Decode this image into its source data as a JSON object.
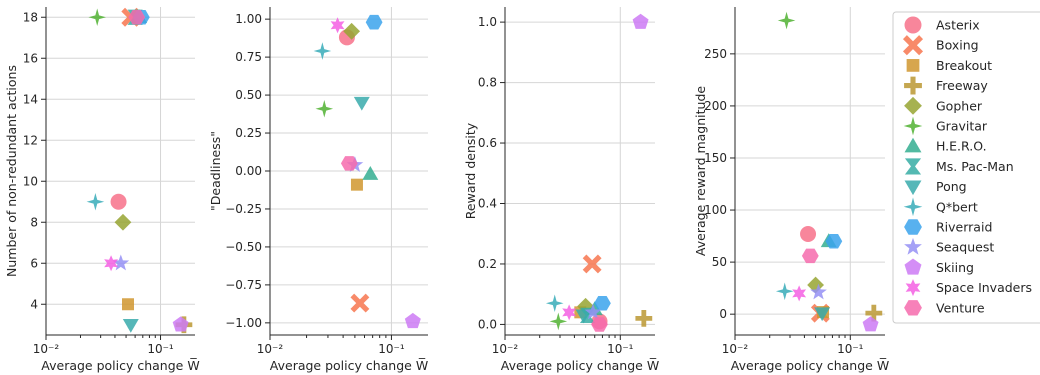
{
  "chart_data": [
    {
      "type": "scatter",
      "xlabel": "Average policy change W̅",
      "ylabel": "Number of non-redundant actions",
      "xscale": "log",
      "xlim": [
        0.01,
        0.2
      ],
      "ylim": [
        2.5,
        18.5
      ],
      "xticks": [
        0.01,
        0.1
      ],
      "xtick_labels": [
        "10⁻²",
        "10⁻¹"
      ],
      "yticks": [
        4,
        6,
        8,
        10,
        12,
        14,
        16,
        18
      ],
      "ytick_labels": [
        "4",
        "6",
        "8",
        "10",
        "12",
        "14",
        "16",
        "18"
      ],
      "grid": true,
      "points": [
        {
          "game": "Asterix",
          "x": 0.043,
          "y": 9
        },
        {
          "game": "Boxing",
          "x": 0.055,
          "y": 18
        },
        {
          "game": "Breakout",
          "x": 0.052,
          "y": 4
        },
        {
          "game": "Freeway",
          "x": 0.16,
          "y": 3
        },
        {
          "game": "Gopher",
          "x": 0.047,
          "y": 8
        },
        {
          "game": "Gravitar",
          "x": 0.028,
          "y": 18
        },
        {
          "game": "H.E.R.O.",
          "x": 0.065,
          "y": 18
        },
        {
          "game": "Ms. Pac-Man",
          "x": 0.06,
          "y": 18
        },
        {
          "game": "Pong",
          "x": 0.055,
          "y": 3
        },
        {
          "game": "Q*bert",
          "x": 0.027,
          "y": 9
        },
        {
          "game": "Riverraid",
          "x": 0.068,
          "y": 18
        },
        {
          "game": "Seaquest",
          "x": 0.045,
          "y": 6
        },
        {
          "game": "Skiing",
          "x": 0.15,
          "y": 3
        },
        {
          "game": "Space Invaders",
          "x": 0.037,
          "y": 6
        },
        {
          "game": "Venture",
          "x": 0.062,
          "y": 18
        }
      ]
    },
    {
      "type": "scatter",
      "xlabel": "Average policy change W̅",
      "ylabel": "\"Deadliness\"",
      "xscale": "log",
      "xlim": [
        0.01,
        0.2
      ],
      "ylim": [
        -1.08,
        1.08
      ],
      "xticks": [
        0.01,
        0.1
      ],
      "xtick_labels": [
        "10⁻²",
        "10⁻¹"
      ],
      "yticks": [
        -1.0,
        -0.75,
        -0.5,
        -0.25,
        0.0,
        0.25,
        0.5,
        0.75,
        1.0
      ],
      "ytick_labels": [
        "−1.00",
        "−0.75",
        "−0.50",
        "−0.25",
        "0.00",
        "0.25",
        "0.50",
        "0.75",
        "1.00"
      ],
      "grid": true,
      "points": [
        {
          "game": "Asterix",
          "x": 0.043,
          "y": 0.88
        },
        {
          "game": "Boxing",
          "x": 0.055,
          "y": -0.87
        },
        {
          "game": "Breakout",
          "x": 0.052,
          "y": -0.09
        },
        {
          "game": "Gopher",
          "x": 0.047,
          "y": 0.92
        },
        {
          "game": "Gravitar",
          "x": 0.028,
          "y": 0.41
        },
        {
          "game": "H.E.R.O.",
          "x": 0.067,
          "y": -0.02
        },
        {
          "game": "Pong",
          "x": 0.057,
          "y": 0.45
        },
        {
          "game": "Q*bert",
          "x": 0.027,
          "y": 0.79
        },
        {
          "game": "Riverraid",
          "x": 0.072,
          "y": 0.98
        },
        {
          "game": "Seaquest",
          "x": 0.05,
          "y": 0.04
        },
        {
          "game": "Skiing",
          "x": 0.15,
          "y": -0.99
        },
        {
          "game": "Space Invaders",
          "x": 0.036,
          "y": 0.96
        },
        {
          "game": "Venture",
          "x": 0.045,
          "y": 0.05
        }
      ]
    },
    {
      "type": "scatter",
      "xlabel": "Average policy change W̅",
      "ylabel": "Reward density",
      "xscale": "log",
      "xlim": [
        0.01,
        0.2
      ],
      "ylim": [
        -0.035,
        1.05
      ],
      "xticks": [
        0.01,
        0.1
      ],
      "xtick_labels": [
        "10⁻²",
        "10⁻¹"
      ],
      "yticks": [
        0.0,
        0.2,
        0.4,
        0.6,
        0.8,
        1.0
      ],
      "ytick_labels": [
        "0.0",
        "0.2",
        "0.4",
        "0.6",
        "0.8",
        "1.0"
      ],
      "grid": true,
      "points": [
        {
          "game": "Asterix",
          "x": 0.066,
          "y": 0.01
        },
        {
          "game": "Boxing",
          "x": 0.057,
          "y": 0.2
        },
        {
          "game": "Breakout",
          "x": 0.045,
          "y": 0.04
        },
        {
          "game": "Freeway",
          "x": 0.16,
          "y": 0.02
        },
        {
          "game": "Gopher",
          "x": 0.05,
          "y": 0.06
        },
        {
          "game": "Gravitar",
          "x": 0.029,
          "y": 0.01
        },
        {
          "game": "H.E.R.O.",
          "x": 0.06,
          "y": 0.05
        },
        {
          "game": "Ms. Pac-Man",
          "x": 0.052,
          "y": 0.03
        },
        {
          "game": "Pong",
          "x": 0.048,
          "y": 0.03
        },
        {
          "game": "Q*bert",
          "x": 0.027,
          "y": 0.07
        },
        {
          "game": "Riverraid",
          "x": 0.07,
          "y": 0.07
        },
        {
          "game": "Seaquest",
          "x": 0.058,
          "y": 0.04
        },
        {
          "game": "Skiing",
          "x": 0.15,
          "y": 1.0
        },
        {
          "game": "Space Invaders",
          "x": 0.036,
          "y": 0.04
        },
        {
          "game": "Venture",
          "x": 0.066,
          "y": 0.0
        }
      ]
    },
    {
      "type": "scatter",
      "xlabel": "Average policy change W̅",
      "ylabel": "Average reward magnitude",
      "xscale": "log",
      "xlim": [
        0.01,
        0.2
      ],
      "ylim": [
        -20,
        295
      ],
      "xticks": [
        0.01,
        0.1
      ],
      "xtick_labels": [
        "10⁻²",
        "10⁻¹"
      ],
      "yticks": [
        0,
        50,
        100,
        150,
        200,
        250
      ],
      "ytick_labels": [
        "0",
        "50",
        "100",
        "150",
        "200",
        "250"
      ],
      "grid": true,
      "points": [
        {
          "game": "Asterix",
          "x": 0.043,
          "y": 77
        },
        {
          "game": "Boxing",
          "x": 0.055,
          "y": 1
        },
        {
          "game": "Breakout",
          "x": 0.058,
          "y": 2
        },
        {
          "game": "Freeway",
          "x": 0.16,
          "y": 1
        },
        {
          "game": "Gopher",
          "x": 0.05,
          "y": 28
        },
        {
          "game": "Gravitar",
          "x": 0.028,
          "y": 282
        },
        {
          "game": "H.E.R.O.",
          "x": 0.065,
          "y": 70
        },
        {
          "game": "Pong",
          "x": 0.057,
          "y": 1
        },
        {
          "game": "Q*bert",
          "x": 0.027,
          "y": 22
        },
        {
          "game": "Riverraid",
          "x": 0.072,
          "y": 70
        },
        {
          "game": "Seaquest",
          "x": 0.053,
          "y": 21
        },
        {
          "game": "Skiing",
          "x": 0.15,
          "y": -10
        },
        {
          "game": "Space Invaders",
          "x": 0.036,
          "y": 20
        },
        {
          "game": "Venture",
          "x": 0.045,
          "y": 56
        }
      ]
    }
  ],
  "legend": {
    "placement": "right",
    "entries": [
      {
        "label": "Asterix",
        "color": "#f77189",
        "marker": "circle"
      },
      {
        "label": "Boxing",
        "color": "#f7754f",
        "marker": "x"
      },
      {
        "label": "Breakout",
        "color": "#d0962f",
        "marker": "square"
      },
      {
        "label": "Freeway",
        "color": "#bb9832",
        "marker": "plus"
      },
      {
        "label": "Gopher",
        "color": "#97a431",
        "marker": "diamond"
      },
      {
        "label": "Gravitar",
        "color": "#50b131",
        "marker": "star4"
      },
      {
        "label": "H.E.R.O.",
        "color": "#34ae91",
        "marker": "triangle-up"
      },
      {
        "label": "Ms. Pac-Man",
        "color": "#36ada4",
        "marker": "hourglass"
      },
      {
        "label": "Pong",
        "color": "#38aaac",
        "marker": "triangle-down"
      },
      {
        "label": "Q*bert",
        "color": "#37abb8",
        "marker": "star4"
      },
      {
        "label": "Riverraid",
        "color": "#3ba3ec",
        "marker": "hexagon"
      },
      {
        "label": "Seaquest",
        "color": "#9591f4",
        "marker": "star"
      },
      {
        "label": "Skiing",
        "color": "#cc7af4",
        "marker": "pentagon"
      },
      {
        "label": "Space Invaders",
        "color": "#f45fe3",
        "marker": "star6"
      },
      {
        "label": "Venture",
        "color": "#f66bad",
        "marker": "hexagon"
      }
    ]
  }
}
